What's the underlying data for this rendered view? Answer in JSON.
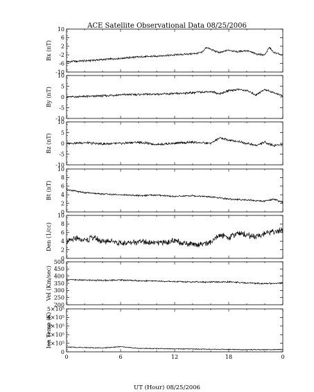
{
  "title": "ACE Satellite Observational Data   08/25/2006",
  "xlabel": "UT (Hour)   08/25/2006",
  "x_ticks": [
    "0",
    "6",
    "12",
    "18",
    "0"
  ],
  "chart_data": [
    {
      "type": "line",
      "ylabel": "Bx (nT)",
      "ylim": [
        -10,
        10
      ],
      "yticks": [
        "10",
        "6",
        "2",
        "-2",
        "-6",
        "-10"
      ],
      "x": [
        0,
        2,
        4,
        6,
        8,
        10,
        12,
        14,
        15,
        15.5,
        16,
        17,
        18,
        19,
        20,
        21,
        22,
        22.5,
        23,
        24
      ],
      "values": [
        -5.2,
        -4.8,
        -4.2,
        -3.6,
        -3.0,
        -2.6,
        -2.0,
        -1.5,
        -1.0,
        1.5,
        0.5,
        -1.0,
        0.2,
        -0.5,
        0.0,
        -1.5,
        -2.0,
        1.5,
        -1.0,
        -2.0
      ]
    },
    {
      "type": "line",
      "ylabel": "By (nT)",
      "ylim": [
        -10,
        10
      ],
      "yticks": [
        "10",
        "5",
        "0",
        "-5",
        "-10"
      ],
      "x": [
        0,
        2,
        4,
        6,
        8,
        10,
        12,
        14,
        16,
        17,
        18,
        19,
        20,
        21,
        22,
        23,
        24
      ],
      "values": [
        0.0,
        0.2,
        0.5,
        1.0,
        1.2,
        1.3,
        1.5,
        2.0,
        2.5,
        1.5,
        3.0,
        3.5,
        3.0,
        1.0,
        3.5,
        2.0,
        0.5
      ]
    },
    {
      "type": "line",
      "ylabel": "Bz (nT)",
      "ylim": [
        -10,
        10
      ],
      "yticks": [
        "10",
        "5",
        "0",
        "-5",
        "-10"
      ],
      "x": [
        0,
        2,
        4,
        6,
        8,
        10,
        12,
        14,
        16,
        17,
        18,
        19,
        20,
        21,
        22,
        23,
        24
      ],
      "values": [
        0.0,
        0.3,
        -0.3,
        0.0,
        0.5,
        -0.5,
        0.0,
        0.5,
        0.0,
        2.5,
        1.5,
        1.0,
        0.0,
        -1.0,
        0.5,
        -1.0,
        -0.5
      ]
    },
    {
      "type": "line",
      "ylabel": "Bt (nT)",
      "ylim": [
        0,
        10
      ],
      "yticks": [
        "10",
        "8",
        "6",
        "4",
        "2",
        "0"
      ],
      "x": [
        0,
        2,
        4,
        6,
        8,
        10,
        12,
        14,
        16,
        18,
        20,
        22,
        23,
        24
      ],
      "values": [
        5.2,
        4.5,
        4.2,
        4.0,
        3.8,
        3.9,
        3.6,
        3.8,
        3.5,
        3.0,
        2.8,
        2.5,
        3.0,
        2.2
      ]
    },
    {
      "type": "line",
      "ylabel": "Den (1/cc)",
      "ylim": [
        0,
        10
      ],
      "yticks": [
        "10",
        "8",
        "6",
        "4",
        "2",
        "0"
      ],
      "x": [
        0,
        1,
        2,
        3,
        4,
        5,
        6,
        8,
        10,
        12,
        14,
        16,
        17,
        18,
        19,
        20,
        21,
        22,
        23,
        24
      ],
      "values": [
        3.8,
        4.5,
        4.2,
        4.8,
        3.8,
        4.2,
        3.4,
        4.0,
        3.5,
        4.0,
        3.2,
        3.6,
        5.5,
        4.8,
        6.0,
        5.5,
        5.0,
        5.8,
        6.2,
        6.5
      ]
    },
    {
      "type": "line",
      "ylabel": "Vel (Km/sec)",
      "ylim": [
        200,
        500
      ],
      "yticks": [
        "500",
        "450",
        "400",
        "350",
        "300",
        "250",
        "200"
      ],
      "x": [
        0,
        2,
        4,
        6,
        8,
        10,
        12,
        14,
        16,
        18,
        20,
        22,
        24
      ],
      "values": [
        375,
        372,
        370,
        373,
        368,
        365,
        362,
        360,
        358,
        360,
        352,
        348,
        352
      ]
    },
    {
      "type": "line",
      "ylabel": "Ion Temp (K)",
      "ylim": [
        0,
        500000
      ],
      "yticks": [
        "5×10⁵",
        "4×10⁵",
        "3×10⁵",
        "2×10⁵",
        "1×10⁵",
        "0"
      ],
      "x": [
        0,
        2,
        4,
        6,
        8,
        10,
        12,
        14,
        16,
        18,
        20,
        22,
        24
      ],
      "values": [
        55000,
        50000,
        45000,
        60000,
        40000,
        38000,
        35000,
        33000,
        30000,
        28000,
        26000,
        25000,
        27000
      ]
    }
  ]
}
